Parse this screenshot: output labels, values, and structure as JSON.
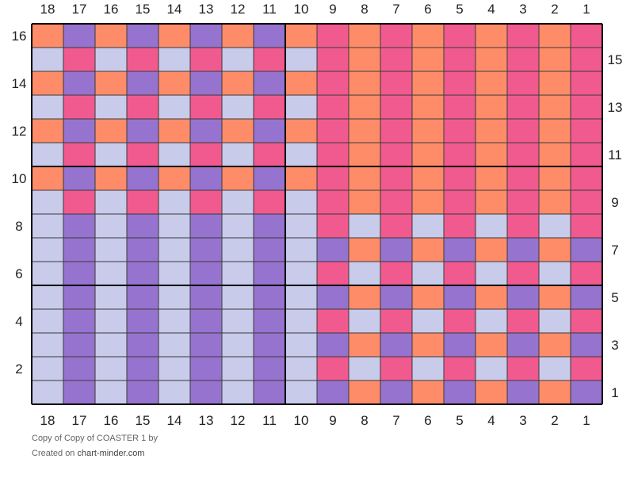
{
  "chart_data": {
    "type": "grid",
    "columns": [
      "18",
      "17",
      "16",
      "15",
      "14",
      "13",
      "12",
      "11",
      "10",
      "9",
      "8",
      "7",
      "6",
      "5",
      "4",
      "3",
      "2",
      "1"
    ],
    "rows_left": [
      "16",
      "14",
      "12",
      "10",
      "8",
      "6",
      "4",
      "2"
    ],
    "rows_right": [
      "15",
      "13",
      "11",
      "9",
      "7",
      "5",
      "3",
      "1"
    ],
    "palette": {
      "O": "#FF8C69",
      "P": "#F05A8E",
      "V": "#9673CF",
      "L": "#C8CBEA"
    },
    "grid_rows": [
      "OVOVOVOVOPOPOPOPOP",
      "LPLPLPLPLPOPOPOPOP",
      "OVOVOVOVOPOPOPOPOP",
      "LPLPLPLPLPOPOPOPOP",
      "OVOVOVOVOPOPOPOPOP",
      "LPLPLPLPLPOPOPOPOP",
      "OVOVOVOVOPOPOPOPOP",
      "LPLPLPLPLPOPOPOPOP",
      "LVLVLVLVLPLPLPLPLP",
      "LVLVLVLVLVOVOVOVOV",
      "LVLVLVLVLPLPLPLPLP",
      "LVLVLVLVLVOVOVOVOV",
      "LVLVLVLVLPLPLPLPLP",
      "LVLVLVLVLVOVOVOVOV",
      "LVLVLVLVLPLPLPLPLP",
      "LVLVLVLVLVOVOVOVOV"
    ]
  },
  "footer": {
    "title": "Copy of Copy of COASTER 1",
    "by": "by",
    "created_on": "Created on",
    "site": "chart-minder.com"
  }
}
